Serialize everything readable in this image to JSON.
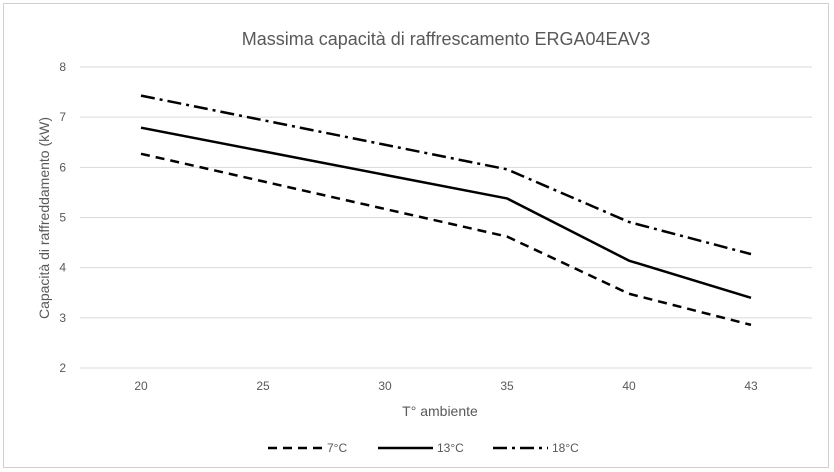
{
  "chart_data": {
    "type": "line",
    "title": "Massima capacità di raffrescamento ERGA04EAV3",
    "xlabel": "T° ambiente",
    "ylabel": "Capacità di raffreddamento (kW)",
    "categories": [
      "20",
      "25",
      "30",
      "35",
      "40",
      "43"
    ],
    "ylim": [
      2,
      8
    ],
    "yticks": [
      "2",
      "3",
      "4",
      "5",
      "6",
      "7",
      "8"
    ],
    "grid": true,
    "legend_position": "bottom",
    "series": [
      {
        "name": "7°C",
        "values": [
          6.27,
          5.72,
          5.17,
          4.62,
          3.48,
          2.86
        ],
        "dash": "dashed",
        "color": "#000000"
      },
      {
        "name": "13°C",
        "values": [
          6.79,
          6.32,
          5.85,
          5.38,
          4.14,
          3.4
        ],
        "dash": "solid",
        "color": "#000000"
      },
      {
        "name": "18°C",
        "values": [
          7.43,
          6.94,
          6.45,
          5.96,
          4.91,
          4.27
        ],
        "dash": "dashdot",
        "color": "#000000"
      }
    ],
    "gridline_color": "#d9d9d9"
  }
}
